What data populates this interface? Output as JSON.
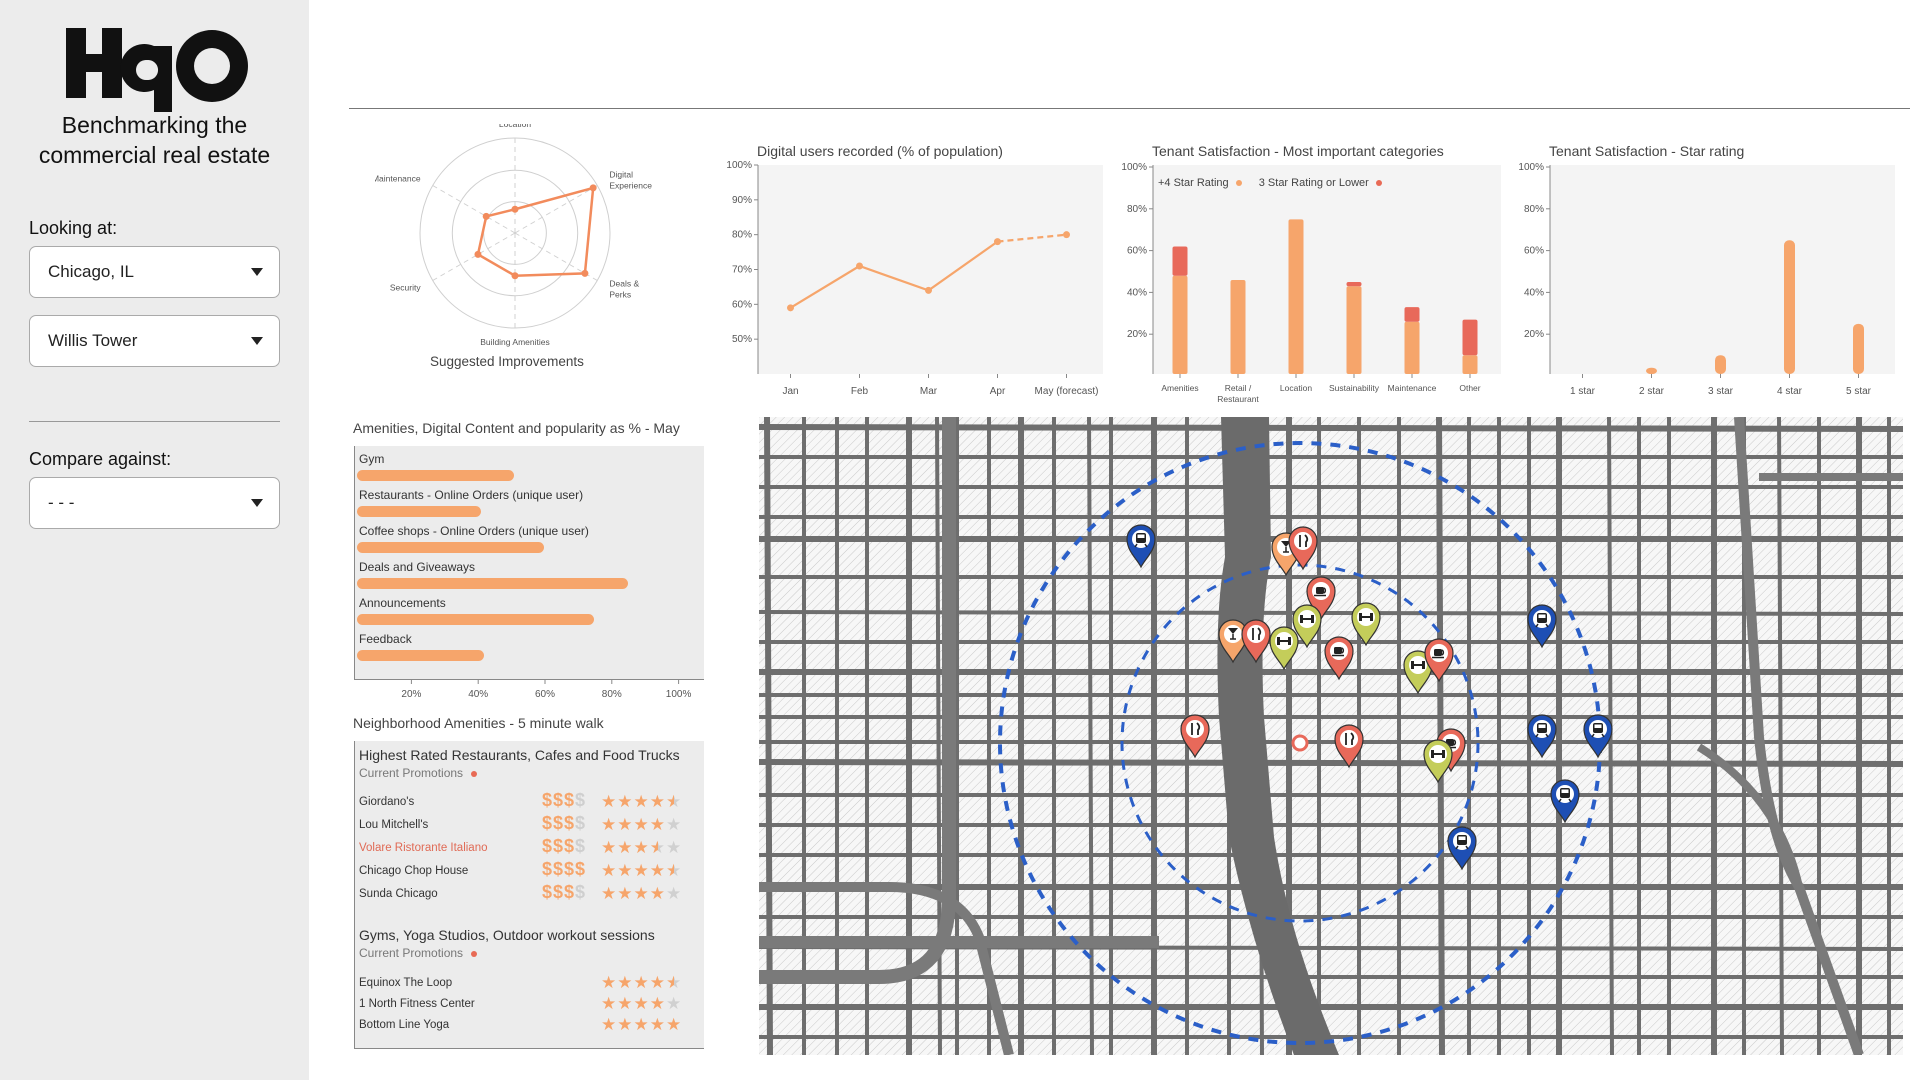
{
  "sidebar": {
    "tagline_line1": "Benchmarking the",
    "tagline_line2": "commercial real estate",
    "looking_at_label": "Looking at:",
    "city_select": "Chicago, IL",
    "building_select": "Willis Tower",
    "compare_label": "Compare against:",
    "compare_select": "- - -"
  },
  "radar": {
    "caption": "Suggested Improvements",
    "axes": [
      "Location",
      "Digital Experience",
      "Deals & Perks",
      "Building Amenities",
      "Security",
      "Maintenance"
    ],
    "values": [
      0.25,
      0.95,
      0.85,
      0.45,
      0.45,
      0.35
    ]
  },
  "digital_users": {
    "title": "Digital users recorded (% of population)",
    "chart_data": {
      "type": "line",
      "categories": [
        "Jan",
        "Feb",
        "Mar",
        "Apr",
        "May (forecast)"
      ],
      "values": [
        59,
        71,
        64,
        78,
        80
      ],
      "forecast_from_index": 3,
      "yticks": [
        "100%",
        "90%",
        "80%",
        "70%",
        "60%",
        "50%"
      ],
      "ylim": [
        40,
        100
      ],
      "color": "#f6a56b"
    }
  },
  "tenant_categories": {
    "title": "Tenant Satisfaction - Most important categories",
    "legend_high": "+4 Star Rating",
    "legend_low": "3 Star Rating or Lower",
    "chart_data": {
      "type": "bar",
      "categories": [
        "Amenities",
        "Retail / Restaurant",
        "Location",
        "Sustainability",
        "Maintenance",
        "Other"
      ],
      "series": [
        {
          "name": "+4 Star Rating",
          "values": [
            47,
            45,
            74,
            42,
            25,
            9
          ],
          "color": "#f6a56b"
        },
        {
          "name": "3 Star Rating or Lower",
          "values": [
            14,
            0,
            0,
            2,
            7,
            17
          ],
          "color": "#e8695a"
        }
      ],
      "yticks": [
        "100%",
        "80%",
        "60%",
        "40%",
        "20%"
      ],
      "ylim": [
        0,
        100
      ]
    }
  },
  "star_rating": {
    "title": "Tenant Satisfaction - Star rating",
    "chart_data": {
      "type": "bar",
      "categories": [
        "1 star",
        "2 star",
        "3 star",
        "4 star",
        "5 star"
      ],
      "values": [
        0,
        3,
        9,
        64,
        24
      ],
      "yticks": [
        "100%",
        "80%",
        "60%",
        "40%",
        "20%"
      ],
      "ylim": [
        0,
        100
      ],
      "color": "#f6a56b"
    }
  },
  "amenities": {
    "title": "Amenities, Digital Content and popularity as % - May",
    "chart_data": {
      "type": "bar",
      "categories": [
        "Gym",
        "Restaurants - Online Orders (unique user)",
        "Coffee shops - Online Orders (unique user)",
        "Deals and Giveaways",
        "Announcements",
        "Feedback"
      ],
      "values": [
        51,
        41,
        60,
        85,
        75,
        42
      ],
      "xticks": [
        "20%",
        "40%",
        "60%",
        "80%",
        "100%"
      ],
      "xlim": [
        10,
        110
      ],
      "color": "#f6a56b"
    }
  },
  "neighborhood": {
    "title": "Neighborhood Amenities - 5 minute walk",
    "restaurants_heading": "Highest Rated Restaurants, Cafes and Food Trucks",
    "restaurants_sub": "Current Promotions",
    "restaurants": [
      {
        "name": "Giordano's",
        "price": 3,
        "rating": 4.5,
        "highlight": false
      },
      {
        "name": "Lou Mitchell's",
        "price": 3,
        "rating": 4,
        "highlight": false
      },
      {
        "name": "Volare Ristorante Italiano",
        "price": 3,
        "rating": 3.5,
        "highlight": true
      },
      {
        "name": "Chicago Chop House",
        "price": 4,
        "rating": 4.5,
        "highlight": false
      },
      {
        "name": "Sunda Chicago",
        "price": 3,
        "rating": 4,
        "highlight": false
      }
    ],
    "gyms_heading": "Gyms, Yoga Studios, Outdoor workout sessions",
    "gyms_sub": "Current Promotions",
    "gyms": [
      {
        "name": "Equinox The Loop",
        "rating": 4.5
      },
      {
        "name": "1 North Fitness Center",
        "rating": 4
      },
      {
        "name": "Bottom Line Yoga",
        "rating": 5
      }
    ]
  },
  "map": {
    "pins": [
      {
        "type": "transit",
        "color": "#1e4fb4"
      },
      {
        "type": "bar",
        "color": "#f6a56b"
      },
      {
        "type": "restaurant",
        "color": "#e8695a"
      },
      {
        "type": "cafe",
        "color": "#e8695a"
      },
      {
        "type": "gym",
        "color": "#c4cd5a"
      },
      {
        "type": "gym",
        "color": "#c4cd5a"
      },
      {
        "type": "bar",
        "color": "#f6a56b"
      },
      {
        "type": "restaurant",
        "color": "#e8695a"
      },
      {
        "type": "gym",
        "color": "#c4cd5a"
      },
      {
        "type": "cafe",
        "color": "#e8695a"
      },
      {
        "type": "gym",
        "color": "#c4cd5a"
      },
      {
        "type": "cafe",
        "color": "#e8695a"
      },
      {
        "type": "transit",
        "color": "#1e4fb4"
      },
      {
        "type": "restaurant",
        "color": "#e8695a"
      },
      {
        "type": "restaurant",
        "color": "#e8695a"
      },
      {
        "type": "cafe",
        "color": "#e8695a"
      },
      {
        "type": "gym",
        "color": "#c4cd5a"
      },
      {
        "type": "transit",
        "color": "#1e4fb4"
      },
      {
        "type": "transit",
        "color": "#1e4fb4"
      },
      {
        "type": "transit",
        "color": "#1e4fb4"
      },
      {
        "type": "transit",
        "color": "#1e4fb4"
      }
    ]
  }
}
